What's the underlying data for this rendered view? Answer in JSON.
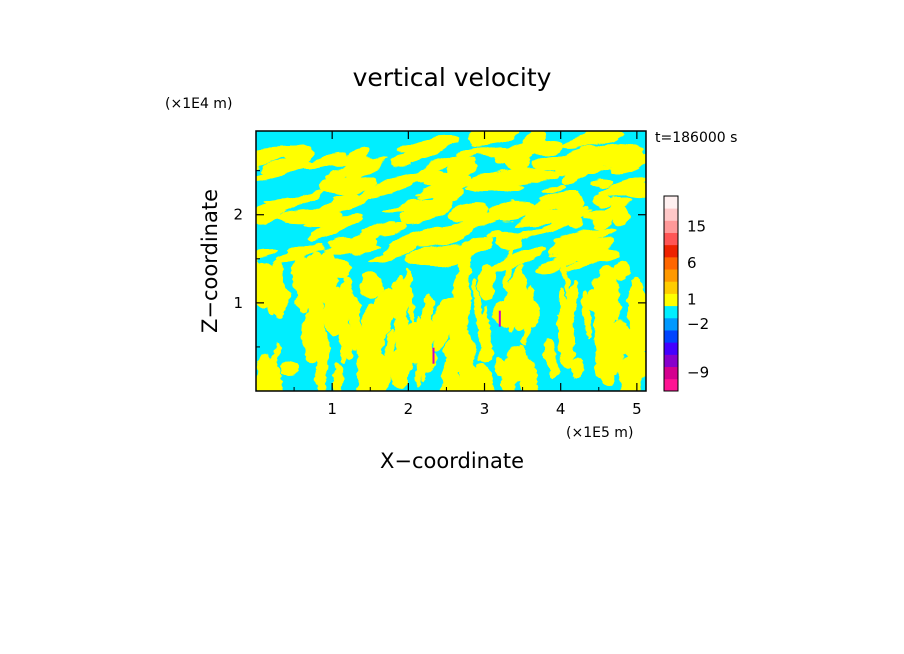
{
  "chart_data": {
    "type": "heatmap",
    "title": "vertical velocity",
    "xlabel": "X−coordinate",
    "ylabel": "Z−coordinate",
    "x_unit": "(×1E5 m)",
    "y_unit": "(×1E4 m)",
    "time_label": "t=186000 s",
    "xlim": [
      0,
      5.12
    ],
    "ylim": [
      0,
      2.95
    ],
    "x_ticks": [
      1,
      2,
      3,
      4,
      5
    ],
    "y_ticks": [
      1,
      2
    ],
    "field_colors": {
      "positive_weak": "#ffff00",
      "negative_weak": "#00eeff",
      "updraft_core": "#cc00cc"
    },
    "colorbar": {
      "tick_labels": [
        {
          "value": 15,
          "text": "15"
        },
        {
          "value": 6,
          "text": "6"
        },
        {
          "value": 1,
          "text": "1"
        },
        {
          "value": -2,
          "text": "−2"
        },
        {
          "value": -9,
          "text": "−9"
        }
      ],
      "segments": [
        {
          "color": "#ff1493"
        },
        {
          "color": "#d4008f"
        },
        {
          "color": "#8800cc"
        },
        {
          "color": "#4400ff"
        },
        {
          "color": "#0044ff"
        },
        {
          "color": "#0099ff"
        },
        {
          "color": "#00eeff"
        },
        {
          "color": "#ffff00"
        },
        {
          "color": "#ffcc00"
        },
        {
          "color": "#ff9900"
        },
        {
          "color": "#ff6600"
        },
        {
          "color": "#ee2200"
        },
        {
          "color": "#ff5555"
        },
        {
          "color": "#ff9999"
        },
        {
          "color": "#ffc8c8"
        },
        {
          "color": "#fff0f0"
        }
      ]
    }
  }
}
